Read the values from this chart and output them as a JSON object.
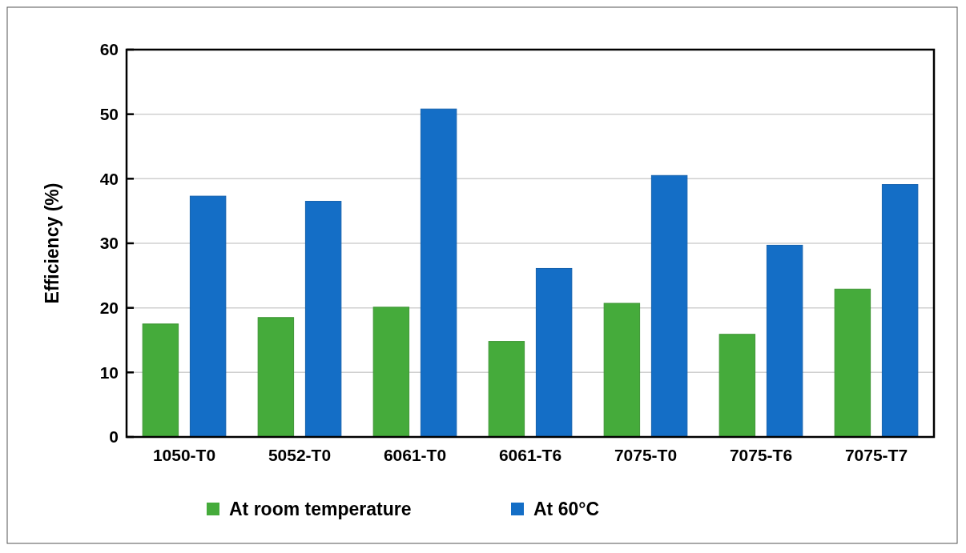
{
  "chart_data": {
    "type": "bar",
    "ylabel": "Efficiency  (%)",
    "categories": [
      "1050-T0",
      "5052-T0",
      "6061-T0",
      "6061-T6",
      "7075-T0",
      "7075-T6",
      "7075-T7"
    ],
    "series": [
      {
        "name": "At room temperature",
        "color": "#45ab3b",
        "values": [
          17.5,
          18.5,
          20.1,
          14.8,
          20.7,
          15.9,
          22.9
        ]
      },
      {
        "name": "At 60°C",
        "color": "#146ec6",
        "values": [
          37.3,
          36.5,
          50.8,
          26.1,
          40.5,
          29.7,
          39.1
        ]
      }
    ],
    "ylim": [
      0,
      60
    ],
    "yticks": [
      0,
      10,
      20,
      30,
      40,
      50,
      60
    ],
    "grid": "y",
    "legend": "bottom"
  }
}
